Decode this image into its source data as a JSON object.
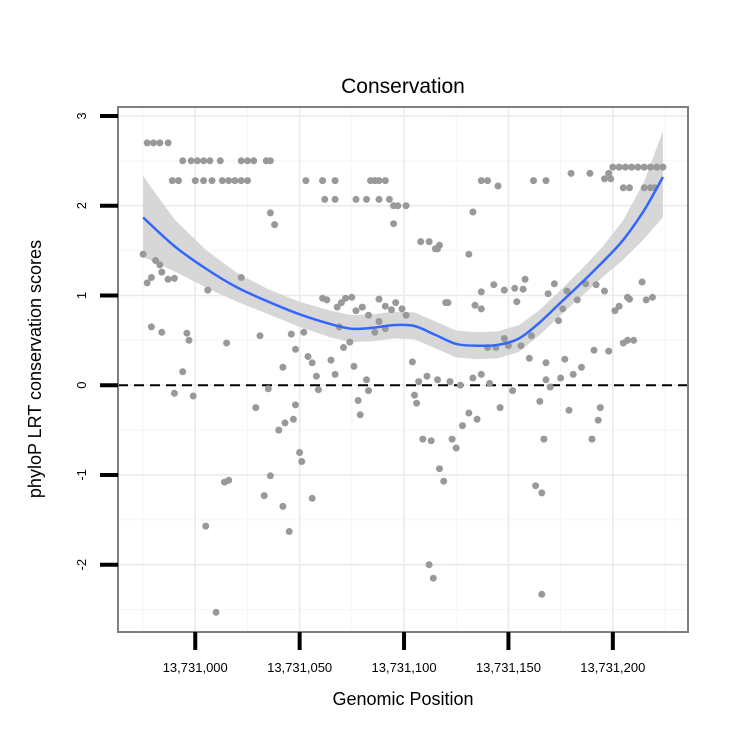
{
  "chart_data": {
    "type": "scatter",
    "title": "Conservation",
    "xlabel": "Genomic Position",
    "ylabel": "phyloP LRT conservation scores",
    "xlim": [
      13730963,
      13731236
    ],
    "ylim": [
      -2.75,
      3.1
    ],
    "x_ticks": [
      {
        "value": 13731000,
        "label": "13,731,000"
      },
      {
        "value": 13731050,
        "label": "13,731,050"
      },
      {
        "value": 13731100,
        "label": "13,731,100"
      },
      {
        "value": 13731150,
        "label": "13,731,150"
      },
      {
        "value": 13731200,
        "label": "13,731,200"
      }
    ],
    "y_ticks": [
      {
        "value": -2,
        "label": "-2"
      },
      {
        "value": -1,
        "label": "-1"
      },
      {
        "value": 0,
        "label": "0"
      },
      {
        "value": 1,
        "label": "1"
      },
      {
        "value": 2,
        "label": "2"
      },
      {
        "value": 3,
        "label": "3"
      }
    ],
    "reference_line": {
      "y": 0,
      "style": "dashed"
    },
    "colors": {
      "points": "#999999",
      "smooth": "#3366ff",
      "ribbon": "#d3d3d3"
    },
    "points": [
      [
        13730975,
        1.46
      ],
      [
        13730977,
        1.14
      ],
      [
        13730979,
        1.2
      ],
      [
        13730981,
        1.39
      ],
      [
        13730983,
        1.34
      ],
      [
        13730984,
        1.26
      ],
      [
        13730987,
        1.18
      ],
      [
        13730977,
        2.7
      ],
      [
        13730980,
        2.7
      ],
      [
        13730983,
        2.7
      ],
      [
        13730987,
        2.7
      ],
      [
        13730989,
        2.28
      ],
      [
        13730992,
        2.28
      ],
      [
        13730994,
        2.5
      ],
      [
        13730998,
        2.5
      ],
      [
        13731001,
        2.5
      ],
      [
        13731004,
        2.5
      ],
      [
        13731007,
        2.5
      ],
      [
        13731012,
        2.5
      ],
      [
        13731000,
        2.28
      ],
      [
        13731004,
        2.28
      ],
      [
        13731008,
        2.28
      ],
      [
        13731013,
        2.28
      ],
      [
        13731016,
        2.28
      ],
      [
        13731019,
        2.28
      ],
      [
        13731022,
        2.28
      ],
      [
        13731025,
        2.28
      ],
      [
        13731022,
        2.5
      ],
      [
        13731025,
        2.5
      ],
      [
        13731028,
        2.5
      ],
      [
        13731034,
        2.5
      ],
      [
        13731036,
        2.5
      ],
      [
        13730979,
        0.65
      ],
      [
        13730984,
        0.59
      ],
      [
        13730990,
        1.19
      ],
      [
        13730990,
        -0.09
      ],
      [
        13730994,
        0.15
      ],
      [
        13730996,
        0.58
      ],
      [
        13730997,
        0.5
      ],
      [
        13730999,
        -0.12
      ],
      [
        13731006,
        1.06
      ],
      [
        13731005,
        -1.57
      ],
      [
        13731010,
        -2.53
      ],
      [
        13731015,
        0.47
      ],
      [
        13731014,
        -1.08
      ],
      [
        13731016,
        -1.06
      ],
      [
        13731022,
        1.2
      ],
      [
        13731029,
        -0.25
      ],
      [
        13731031,
        0.55
      ],
      [
        13731033,
        -1.23
      ],
      [
        13731035,
        -0.04
      ],
      [
        13731036,
        -1.01
      ],
      [
        13731036,
        1.92
      ],
      [
        13731038,
        1.79
      ],
      [
        13731040,
        -0.5
      ],
      [
        13731042,
        0.2
      ],
      [
        13731043,
        -0.42
      ],
      [
        13731047,
        -0.38
      ],
      [
        13731048,
        -0.22
      ],
      [
        13731042,
        -1.35
      ],
      [
        13731045,
        -1.63
      ],
      [
        13731046,
        0.57
      ],
      [
        13731048,
        0.4
      ],
      [
        13731050,
        -0.75
      ],
      [
        13731051,
        -0.85
      ],
      [
        13731052,
        0.59
      ],
      [
        13731054,
        0.32
      ],
      [
        13731056,
        0.25
      ],
      [
        13731056,
        -1.26
      ],
      [
        13731058,
        0.1
      ],
      [
        13731059,
        -0.05
      ],
      [
        13731061,
        0.97
      ],
      [
        13731063,
        0.95
      ],
      [
        13731065,
        0.28
      ],
      [
        13731067,
        0.12
      ],
      [
        13731068,
        0.87
      ],
      [
        13731053,
        2.28
      ],
      [
        13731061,
        2.28
      ],
      [
        13731067,
        2.28
      ],
      [
        13731062,
        2.07
      ],
      [
        13731067,
        2.07
      ],
      [
        13731070,
        0.92
      ],
      [
        13731072,
        0.97
      ],
      [
        13731075,
        0.98
      ],
      [
        13731077,
        0.83
      ],
      [
        13731080,
        0.87
      ],
      [
        13731083,
        0.78
      ],
      [
        13731086,
        0.59
      ],
      [
        13731088,
        0.71
      ],
      [
        13731091,
        0.63
      ],
      [
        13731069,
        0.65
      ],
      [
        13731071,
        0.42
      ],
      [
        13731074,
        0.48
      ],
      [
        13731076,
        0.21
      ],
      [
        13731078,
        -0.17
      ],
      [
        13731079,
        -0.33
      ],
      [
        13731082,
        0.06
      ],
      [
        13731083,
        -0.06
      ],
      [
        13731077,
        2.07
      ],
      [
        13731082,
        2.07
      ],
      [
        13731084,
        2.28
      ],
      [
        13731086,
        2.28
      ],
      [
        13731088,
        2.28
      ],
      [
        13731091,
        2.28
      ],
      [
        13731088,
        2.07
      ],
      [
        13731093,
        2.07
      ],
      [
        13731088,
        0.96
      ],
      [
        13731091,
        0.88
      ],
      [
        13731094,
        0.84
      ],
      [
        13731096,
        0.92
      ],
      [
        13731099,
        0.85
      ],
      [
        13731101,
        0.78
      ],
      [
        13731095,
        2.0
      ],
      [
        13731097,
        2.0
      ],
      [
        13731101,
        2.0
      ],
      [
        13731095,
        1.8
      ],
      [
        13731104,
        0.26
      ],
      [
        13731105,
        -0.11
      ],
      [
        13731106,
        -0.2
      ],
      [
        13731107,
        0.04
      ],
      [
        13731109,
        -0.6
      ],
      [
        13731111,
        0.1
      ],
      [
        13731112,
        -2.0
      ],
      [
        13731114,
        -2.15
      ],
      [
        13731113,
        -0.62
      ],
      [
        13731108,
        1.6
      ],
      [
        13731112,
        1.6
      ],
      [
        13731115,
        1.52
      ],
      [
        13731116,
        1.52
      ],
      [
        13731117,
        1.56
      ],
      [
        13731116,
        0.06
      ],
      [
        13731117,
        -0.93
      ],
      [
        13731119,
        -1.07
      ],
      [
        13731120,
        0.92
      ],
      [
        13731121,
        0.92
      ],
      [
        13731122,
        0.04
      ],
      [
        13731123,
        -0.6
      ],
      [
        13731125,
        -0.7
      ],
      [
        13731127,
        0.0
      ],
      [
        13731128,
        -0.45
      ],
      [
        13731131,
        -0.31
      ],
      [
        13731133,
        0.08
      ],
      [
        13731135,
        -0.38
      ],
      [
        13731137,
        0.12
      ],
      [
        13731131,
        1.46
      ],
      [
        13731133,
        1.93
      ],
      [
        13731134,
        0.89
      ],
      [
        13731137,
        1.04
      ],
      [
        13731137,
        2.28
      ],
      [
        13731140,
        2.28
      ],
      [
        13731145,
        2.22
      ],
      [
        13731137,
        0.85
      ],
      [
        13731140,
        0.42
      ],
      [
        13731141,
        0.02
      ],
      [
        13731143,
        1.12
      ],
      [
        13731144,
        0.42
      ],
      [
        13731146,
        -0.25
      ],
      [
        13731148,
        1.06
      ],
      [
        13731148,
        0.52
      ],
      [
        13731150,
        0.44
      ],
      [
        13731152,
        -0.06
      ],
      [
        13731153,
        1.08
      ],
      [
        13731154,
        0.93
      ],
      [
        13731156,
        0.44
      ],
      [
        13731157,
        1.07
      ],
      [
        13731158,
        1.18
      ],
      [
        13731161,
        0.55
      ],
      [
        13731163,
        -1.12
      ],
      [
        13731165,
        -0.18
      ],
      [
        13731166,
        -1.2
      ],
      [
        13731167,
        -0.6
      ],
      [
        13731168,
        0.25
      ],
      [
        13731169,
        1.02
      ],
      [
        13731160,
        0.3
      ],
      [
        13731162,
        2.28
      ],
      [
        13731168,
        2.28
      ],
      [
        13731166,
        -2.33
      ],
      [
        13731168,
        0.06
      ],
      [
        13731170,
        -0.02
      ],
      [
        13731172,
        1.13
      ],
      [
        13731174,
        0.72
      ],
      [
        13731175,
        0.08
      ],
      [
        13731176,
        0.85
      ],
      [
        13731177,
        0.29
      ],
      [
        13731178,
        1.05
      ],
      [
        13731179,
        -0.28
      ],
      [
        13731181,
        0.12
      ],
      [
        13731183,
        0.95
      ],
      [
        13731180,
        2.36
      ],
      [
        13731185,
        0.2
      ],
      [
        13731187,
        1.13
      ],
      [
        13731189,
        2.36
      ],
      [
        13731190,
        -0.6
      ],
      [
        13731191,
        0.39
      ],
      [
        13731192,
        1.12
      ],
      [
        13731193,
        -0.39
      ],
      [
        13731194,
        -0.25
      ],
      [
        13731196,
        1.05
      ],
      [
        13731198,
        0.38
      ],
      [
        13731198,
        2.36
      ],
      [
        13731201,
        0.83
      ],
      [
        13731203,
        0.88
      ],
      [
        13731205,
        0.47
      ],
      [
        13731207,
        0.98
      ],
      [
        13731208,
        0.96
      ],
      [
        13731200,
        2.43
      ],
      [
        13731203,
        2.43
      ],
      [
        13731206,
        2.43
      ],
      [
        13731209,
        2.43
      ],
      [
        13731212,
        2.43
      ],
      [
        13731215,
        2.43
      ],
      [
        13731218,
        2.43
      ],
      [
        13731221,
        2.43
      ],
      [
        13731224,
        2.43
      ],
      [
        13731196,
        2.3
      ],
      [
        13731199,
        2.3
      ],
      [
        13731205,
        2.2
      ],
      [
        13731208,
        2.2
      ],
      [
        13731215,
        2.2
      ],
      [
        13731218,
        2.2
      ],
      [
        13731207,
        0.5
      ],
      [
        13731210,
        0.5
      ],
      [
        13731214,
        1.15
      ],
      [
        13731216,
        0.95
      ],
      [
        13731219,
        0.98
      ],
      [
        13731220,
        2.2
      ]
    ],
    "smooth": {
      "x": [
        13730975,
        13730990,
        13731005,
        13731020,
        13731035,
        13731050,
        13731065,
        13731075,
        13731085,
        13731095,
        13731105,
        13731115,
        13731125,
        13731135,
        13731145,
        13731155,
        13731165,
        13731175,
        13731185,
        13731195,
        13731205,
        13731215,
        13731224
      ],
      "y": [
        1.87,
        1.55,
        1.3,
        1.09,
        0.93,
        0.79,
        0.68,
        0.63,
        0.64,
        0.67,
        0.66,
        0.56,
        0.46,
        0.44,
        0.45,
        0.52,
        0.7,
        0.92,
        1.14,
        1.37,
        1.62,
        1.95,
        2.32
      ],
      "lower": [
        1.43,
        1.27,
        1.09,
        0.93,
        0.79,
        0.65,
        0.53,
        0.48,
        0.49,
        0.52,
        0.51,
        0.41,
        0.31,
        0.29,
        0.3,
        0.37,
        0.56,
        0.78,
        0.99,
        1.2,
        1.4,
        1.63,
        1.87
      ],
      "upper": [
        2.33,
        1.85,
        1.51,
        1.25,
        1.07,
        0.93,
        0.83,
        0.78,
        0.79,
        0.82,
        0.81,
        0.71,
        0.61,
        0.59,
        0.6,
        0.67,
        0.84,
        1.06,
        1.29,
        1.54,
        1.84,
        2.27,
        2.83
      ]
    }
  }
}
